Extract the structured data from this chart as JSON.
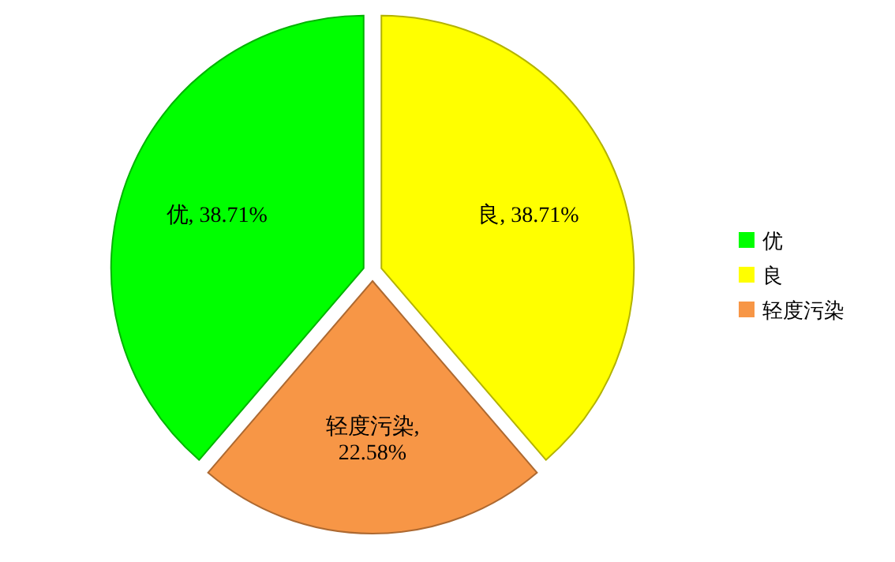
{
  "chart_data": {
    "type": "pie",
    "categories": [
      "优",
      "良",
      "轻度污染"
    ],
    "values": [
      38.71,
      38.71,
      22.58
    ],
    "colors": [
      "#00ff00",
      "#ffff00",
      "#f79646"
    ],
    "value_labels": [
      "优, 38.71%",
      "良, 38.71%",
      "轻度污染, 22.58%"
    ],
    "legend": "right"
  }
}
